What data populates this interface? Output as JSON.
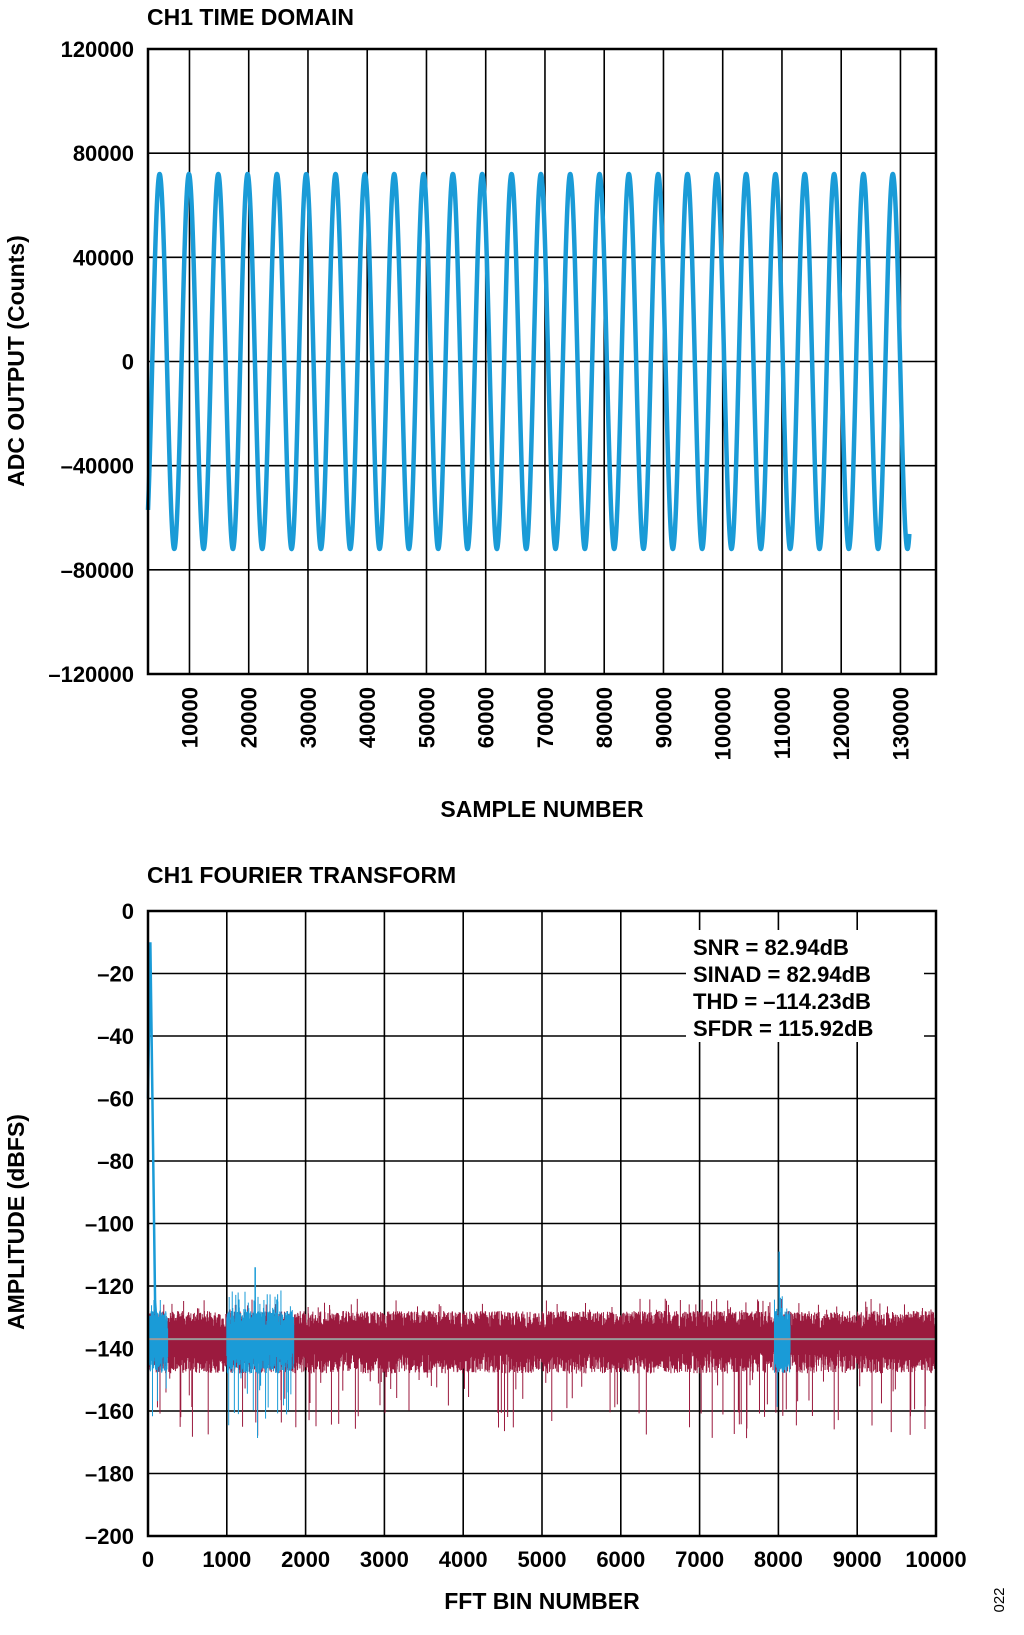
{
  "figure_code": "022",
  "colors": {
    "signal": "#1a9bd7",
    "noise": "#9b1a3e",
    "grid": "#000000",
    "mean_line": "#9a9a9a"
  },
  "chart_data": [
    {
      "type": "line",
      "title": "CH1 TIME DOMAIN",
      "xlabel": "SAMPLE NUMBER",
      "ylabel": "ADC OUTPUT (Counts)",
      "xlim": [
        3000,
        136000
      ],
      "ylim": [
        -120000,
        120000
      ],
      "x_ticks": [
        10000,
        20000,
        30000,
        40000,
        50000,
        60000,
        70000,
        80000,
        90000,
        100000,
        110000,
        120000,
        130000
      ],
      "x_tick_labels": [
        "10000",
        "20000",
        "30000",
        "40000",
        "50000",
        "60000",
        "70000",
        "80000",
        "90000",
        "100000",
        "110000",
        "120000",
        "130000"
      ],
      "y_ticks": [
        120000,
        80000,
        40000,
        0,
        -40000,
        -80000,
        -120000
      ],
      "y_tick_labels": [
        "120000",
        "80000",
        "40000",
        "0",
        "–40000",
        "–80000",
        "–120000"
      ],
      "grid": true,
      "series": [
        {
          "color": "#1a9bd7",
          "amplitude": 72000,
          "period": 4950,
          "x_start": 3000,
          "x_end": 131500,
          "y_start": -57000
        }
      ]
    },
    {
      "type": "line",
      "title": "CH1 FOURIER TRANSFORM",
      "xlabel": "FFT BIN NUMBER",
      "ylabel": "AMPLITUDE (dBFS)",
      "xlim": [
        0,
        10000
      ],
      "ylim": [
        -200,
        0
      ],
      "x_ticks": [
        0,
        1000,
        2000,
        3000,
        4000,
        5000,
        6000,
        7000,
        8000,
        9000,
        10000
      ],
      "x_tick_labels": [
        "0",
        "1000",
        "2000",
        "3000",
        "4000",
        "5000",
        "6000",
        "7000",
        "8000",
        "9000",
        "10000"
      ],
      "y_ticks": [
        0,
        -20,
        -40,
        -60,
        -80,
        -100,
        -120,
        -140,
        -160,
        -180,
        -200
      ],
      "y_tick_labels": [
        "0",
        "–20",
        "–40",
        "–60",
        "–80",
        "–100",
        "–120",
        "–140",
        "–160",
        "–180",
        "–200"
      ],
      "grid": true,
      "noise_floor_db": -137,
      "fundamental": {
        "bin": 30,
        "peak_db": -10
      },
      "highlight_regions": [
        {
          "from_bin": 1000,
          "to_bin": 1850,
          "color": "#1a9bd7",
          "peak_bin": 1360,
          "peak_db": -114
        },
        {
          "from_bin": 7950,
          "to_bin": 8150,
          "color": "#1a9bd7",
          "peak_bin": 8010,
          "peak_db": -109
        }
      ],
      "annotations": [
        "SNR = 82.94dB",
        "SINAD = 82.94dB",
        "THD = –114.23dB",
        "SFDR = 115.92dB"
      ]
    }
  ]
}
